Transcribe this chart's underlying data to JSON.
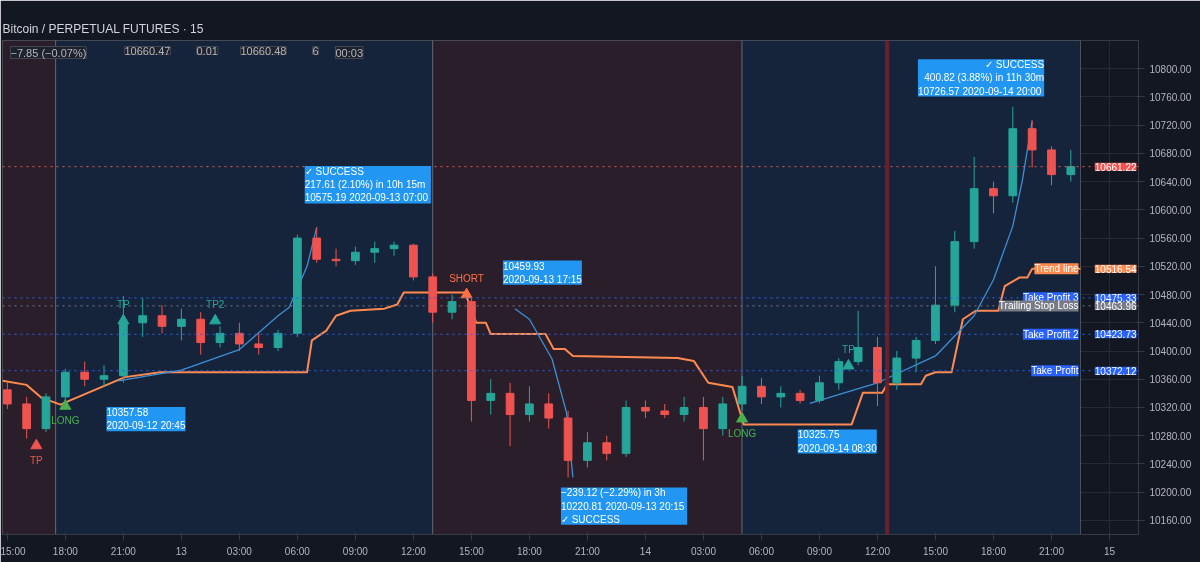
{
  "chart_data": {
    "type": "candlestick",
    "title": "Bitcoin / PERPETUAL FUTURES · 15",
    "x": [
      "2020-09-12T15:00",
      "2020-09-12T16:00",
      "2020-09-12T17:00",
      "2020-09-12T18:00",
      "2020-09-12T19:00",
      "2020-09-12T20:00",
      "2020-09-12T21:00",
      "2020-09-12T22:00",
      "2020-09-12T23:00",
      "2020-09-13T00:00",
      "2020-09-13T01:00",
      "2020-09-13T02:00",
      "2020-09-13T03:00",
      "2020-09-13T04:00",
      "2020-09-13T05:00",
      "2020-09-13T06:00",
      "2020-09-13T07:00",
      "2020-09-13T08:00",
      "2020-09-13T09:00",
      "2020-09-13T10:00",
      "2020-09-13T11:00",
      "2020-09-13T12:00",
      "2020-09-13T13:00",
      "2020-09-13T14:00",
      "2020-09-13T15:00",
      "2020-09-13T16:00",
      "2020-09-13T17:00",
      "2020-09-13T18:00",
      "2020-09-13T19:00",
      "2020-09-13T20:00",
      "2020-09-13T21:00",
      "2020-09-13T22:00",
      "2020-09-13T23:00",
      "2020-09-14T00:00",
      "2020-09-14T01:00",
      "2020-09-14T02:00",
      "2020-09-14T03:00",
      "2020-09-14T04:00",
      "2020-09-14T05:00",
      "2020-09-14T06:00",
      "2020-09-14T07:00",
      "2020-09-14T08:00",
      "2020-09-14T09:00",
      "2020-09-14T10:00",
      "2020-09-14T11:00",
      "2020-09-14T12:00",
      "2020-09-14T13:00",
      "2020-09-14T14:00",
      "2020-09-14T15:00",
      "2020-09-14T16:00",
      "2020-09-14T17:00",
      "2020-09-14T18:00",
      "2020-09-14T19:00",
      "2020-09-14T20:00",
      "2020-09-14T21:00",
      "2020-09-14T22:00"
    ],
    "ohlc": [
      [
        10345,
        10355,
        10318,
        10325
      ],
      [
        10325,
        10335,
        10276,
        10290
      ],
      [
        10290,
        10340,
        10285,
        10335
      ],
      [
        10335,
        10375,
        10325,
        10370
      ],
      [
        10370,
        10385,
        10350,
        10360
      ],
      [
        10360,
        10380,
        10350,
        10365
      ],
      [
        10365,
        10478,
        10355,
        10440
      ],
      [
        10440,
        10475,
        10420,
        10450
      ],
      [
        10450,
        10465,
        10425,
        10435
      ],
      [
        10435,
        10460,
        10415,
        10445
      ],
      [
        10445,
        10455,
        10395,
        10412
      ],
      [
        10412,
        10435,
        10405,
        10425
      ],
      [
        10425,
        10440,
        10400,
        10410
      ],
      [
        10410,
        10425,
        10395,
        10405
      ],
      [
        10405,
        10430,
        10400,
        10425
      ],
      [
        10425,
        10565,
        10420,
        10560
      ],
      [
        10560,
        10575.19,
        10525,
        10530
      ],
      [
        10530,
        10545,
        10520,
        10528
      ],
      [
        10528,
        10548,
        10522,
        10540
      ],
      [
        10540,
        10555,
        10525,
        10545
      ],
      [
        10545,
        10555,
        10535,
        10550
      ],
      [
        10550,
        10552,
        10500,
        10505
      ],
      [
        10505,
        10510,
        10440,
        10455
      ],
      [
        10455,
        10480,
        10445,
        10470
      ],
      [
        10470,
        10475,
        10300,
        10330
      ],
      [
        10330,
        10360,
        10310,
        10340
      ],
      [
        10340,
        10355,
        10265,
        10310
      ],
      [
        10310,
        10350,
        10300,
        10325
      ],
      [
        10325,
        10340,
        10290,
        10305
      ],
      [
        10305,
        10315,
        10220.81,
        10245
      ],
      [
        10245,
        10285,
        10235,
        10270
      ],
      [
        10270,
        10280,
        10245,
        10255
      ],
      [
        10255,
        10330,
        10250,
        10320
      ],
      [
        10320,
        10330,
        10305,
        10315
      ],
      [
        10315,
        10325,
        10305,
        10310
      ],
      [
        10310,
        10335,
        10300,
        10320
      ],
      [
        10320,
        10335,
        10245,
        10290
      ],
      [
        10290,
        10335,
        10280,
        10325
      ],
      [
        10325,
        10365,
        10315,
        10350
      ],
      [
        10350,
        10362,
        10325,
        10335
      ],
      [
        10335,
        10350,
        10320,
        10340
      ],
      [
        10340,
        10345,
        10325.75,
        10330
      ],
      [
        10330,
        10365,
        10326,
        10355
      ],
      [
        10355,
        10390,
        10345,
        10385
      ],
      [
        10385,
        10457,
        10380,
        10405
      ],
      [
        10405,
        10420,
        10322,
        10355
      ],
      [
        10355,
        10400,
        10345,
        10390
      ],
      [
        10390,
        10420,
        10370,
        10415
      ],
      [
        10415,
        10520,
        10410,
        10465
      ],
      [
        10465,
        10570,
        10455,
        10555
      ],
      [
        10555,
        10675,
        10545,
        10630
      ],
      [
        10630,
        10640,
        10595,
        10620
      ],
      [
        10620,
        10746,
        10610,
        10715
      ],
      [
        10715,
        10726.57,
        10660,
        10685
      ],
      [
        10685,
        10690,
        10635,
        10650
      ],
      [
        10650,
        10685,
        10640,
        10661.22
      ]
    ],
    "colors": [
      "#ef5350",
      "#ef5350",
      "#26a69a",
      "#26a69a",
      "#ef5350",
      "#26a69a",
      "#26a69a",
      "#26a69a",
      "#ef5350",
      "#26a69a",
      "#ef5350",
      "#26a69a",
      "#ef5350",
      "#ef5350",
      "#26a69a",
      "#26a69a",
      "#ef5350",
      "#ef5350",
      "#26a69a",
      "#26a69a",
      "#26a69a",
      "#ef5350",
      "#ef5350",
      "#26a69a",
      "#ef5350",
      "#26a69a",
      "#ef5350",
      "#26a69a",
      "#ef5350",
      "#ef5350",
      "#26a69a",
      "#ef5350",
      "#26a69a",
      "#ef5350",
      "#ef5350",
      "#26a69a",
      "#ef5350",
      "#26a69a",
      "#26a69a",
      "#ef5350",
      "#26a69a",
      "#ef5350",
      "#26a69a",
      "#26a69a",
      "#26a69a",
      "#ef5350",
      "#26a69a",
      "#26a69a",
      "#26a69a",
      "#26a69a",
      "#26a69a",
      "#ef5350",
      "#26a69a",
      "#ef5350",
      "#ef5350",
      "#26a69a"
    ],
    "series": [
      {
        "type": "line",
        "name": "Trend line",
        "color": "#ff8a50",
        "x": [
          "2020-09-12T14:45",
          "2020-09-12T16:00",
          "2020-09-12T16:45",
          "2020-09-12T17:45",
          "2020-09-12T18:15",
          "2020-09-12T21:05",
          "2020-09-12T22:55",
          "2020-09-13T06:30",
          "2020-09-13T06:45",
          "2020-09-13T07:30",
          "2020-09-13T08:00",
          "2020-09-13T08:45",
          "2020-09-13T10:30",
          "2020-09-13T11:10",
          "2020-09-13T11:30",
          "2020-09-13T14:40",
          "2020-09-13T15:15",
          "2020-09-13T15:45",
          "2020-09-13T16:00",
          "2020-09-13T18:50",
          "2020-09-13T19:15",
          "2020-09-13T19:50",
          "2020-09-13T20:15",
          "2020-09-14T01:40",
          "2020-09-14T02:30",
          "2020-09-14T03:15",
          "2020-09-14T04:30",
          "2020-09-14T05:05",
          "2020-09-14T10:40",
          "2020-09-14T11:15",
          "2020-09-14T12:15",
          "2020-09-14T12:30",
          "2020-09-14T14:15",
          "2020-09-14T14:30",
          "2020-09-14T15:00",
          "2020-09-14T15:50",
          "2020-09-14T16:25",
          "2020-09-14T17:05",
          "2020-09-14T18:15",
          "2020-09-14T18:35",
          "2020-09-14T19:20",
          "2020-09-14T19:45",
          "2020-09-14T20:00",
          "2020-09-14T22:30"
        ],
        "values": [
          10358,
          10352,
          10334,
          10324,
          10330,
          10363,
          10370,
          10370,
          10415,
          10429,
          10450,
          10457,
          10460,
          10466,
          10483,
          10483,
          10440,
          10440,
          10424,
          10424,
          10403,
          10403,
          10393,
          10390,
          10386,
          10355,
          10349,
          10296,
          10296,
          10341,
          10341,
          10353,
          10353,
          10365,
          10370,
          10370,
          10445,
          10457,
          10457,
          10492,
          10504,
          10504,
          10516.54,
          10516.54
        ]
      },
      {
        "type": "line",
        "color": "#3d8fd6",
        "x": [
          "2020-09-12T20:45",
          "2020-09-13T00:00",
          "2020-09-13T03:00",
          "2020-09-13T05:00",
          "2020-09-13T05:35",
          "2020-09-13T06:30",
          "2020-09-13T07:00"
        ],
        "values": [
          10357.58,
          10373,
          10402,
          10450,
          10462,
          10520,
          10575.19
        ]
      },
      {
        "type": "line",
        "color": "#3d8fd6",
        "x": [
          "2020-09-13T17:15",
          "2020-09-13T18:00",
          "2020-09-13T19:10",
          "2020-09-13T19:55",
          "2020-09-13T20:15"
        ],
        "values": [
          10459.93,
          10445,
          10389,
          10313,
          10220.81
        ]
      },
      {
        "type": "line",
        "color": "#3d8fd6",
        "x": [
          "2020-09-14T08:30",
          "2020-09-14T12:00",
          "2020-09-14T15:00",
          "2020-09-14T17:00",
          "2020-09-14T18:00",
          "2020-09-14T19:00",
          "2020-09-14T19:30",
          "2020-09-14T20:00"
        ],
        "values": [
          10325.75,
          10355,
          10393,
          10450,
          10501,
          10577,
          10643,
          10726.57
        ]
      },
      {
        "type": "scatter",
        "marker": "triangle",
        "x": [
          "2020-09-12T16:30",
          "2020-09-12T18:00",
          "2020-09-12T21:00",
          "2020-09-13T01:45",
          "2020-09-13T14:45",
          "2020-09-14T05:00",
          "2020-09-14T10:30"
        ],
        "values": [
          10266,
          10322,
          10443,
          10443,
          10480,
          10304,
          10379
        ],
        "colors": [
          "#ef5350",
          "#4caf50",
          "#26a69a",
          "#26a69a",
          "#ff7043",
          "#4caf50",
          "#26a69a"
        ],
        "value_labels": [
          "TP",
          "LONG",
          "TP",
          "TP2",
          "SHORT",
          "LONG",
          "TP"
        ]
      }
    ],
    "xlim": [
      "2020-09-12T14:45",
      "2020-09-15T01:30"
    ],
    "xticks": [
      {
        "value": "2020-09-12T15:00",
        "label": "15:00"
      },
      {
        "value": "2020-09-12T18:00",
        "label": "18:00"
      },
      {
        "value": "2020-09-12T21:00",
        "label": "21:00"
      },
      {
        "value": "2020-09-13T00:00",
        "label": "13"
      },
      {
        "value": "2020-09-13T03:00",
        "label": "03:00"
      },
      {
        "value": "2020-09-13T06:00",
        "label": "06:00"
      },
      {
        "value": "2020-09-13T09:00",
        "label": "09:00"
      },
      {
        "value": "2020-09-13T12:00",
        "label": "12:00"
      },
      {
        "value": "2020-09-13T15:00",
        "label": "15:00"
      },
      {
        "value": "2020-09-13T18:00",
        "label": "18:00"
      },
      {
        "value": "2020-09-13T21:00",
        "label": "21:00"
      },
      {
        "value": "2020-09-14T00:00",
        "label": "14"
      },
      {
        "value": "2020-09-14T03:00",
        "label": "03:00"
      },
      {
        "value": "2020-09-14T06:00",
        "label": "06:00"
      },
      {
        "value": "2020-09-14T09:00",
        "label": "09:00"
      },
      {
        "value": "2020-09-14T12:00",
        "label": "12:00"
      },
      {
        "value": "2020-09-14T15:00",
        "label": "15:00"
      },
      {
        "value": "2020-09-14T18:00",
        "label": "18:00"
      },
      {
        "value": "2020-09-14T21:00",
        "label": "21:00"
      },
      {
        "value": "2020-09-15T00:00",
        "label": "15"
      }
    ],
    "ylim": [
      10140,
      10840
    ],
    "yticks": [
      {
        "value": 10160,
        "label": "10160.00"
      },
      {
        "value": 10200,
        "label": "10200.00"
      },
      {
        "value": 10240,
        "label": "10240.00"
      },
      {
        "value": 10280,
        "label": "10280.00"
      },
      {
        "value": 10320,
        "label": "10320.00"
      },
      {
        "value": 10360,
        "label": "10360.00"
      },
      {
        "value": 10400,
        "label": "10400.00"
      },
      {
        "value": 10440,
        "label": "10440.00"
      },
      {
        "value": 10480,
        "label": "10480.00"
      },
      {
        "value": 10520,
        "label": "10520.00"
      },
      {
        "value": 10560,
        "label": "10560.00"
      },
      {
        "value": 10600,
        "label": "10600.00"
      },
      {
        "value": 10640,
        "label": "10640.00"
      },
      {
        "value": 10680,
        "label": "10680.00"
      },
      {
        "value": 10720,
        "label": "10720.00"
      },
      {
        "value": 10760,
        "label": "10760.00"
      },
      {
        "value": 10800,
        "label": "10800.00"
      }
    ],
    "grid": true,
    "bands": [
      {
        "axis": "x",
        "from": "2020-09-12T14:45",
        "to": "2020-09-12T17:30",
        "color": "#2a1e2a"
      },
      {
        "axis": "x",
        "from": "2020-09-12T17:30",
        "to": "2020-09-13T13:00",
        "color": "#15243a"
      },
      {
        "axis": "x",
        "from": "2020-09-13T13:00",
        "to": "2020-09-14T05:00",
        "color": "#2a1e2a"
      },
      {
        "axis": "x",
        "from": "2020-09-14T05:00",
        "to": "2020-09-14T22:30",
        "color": "#15243a"
      }
    ],
    "ref_lines": [
      {
        "axis": "y",
        "value": 10661.22,
        "label": "10661.22",
        "color": "#ef5350",
        "line_style": "dotted"
      },
      {
        "axis": "x",
        "value": "2020-09-14T12:30",
        "color": "#6b1f2a",
        "line_style": "solid"
      },
      {
        "axis": "y",
        "value": 10475.33,
        "label": "Take Profit 3",
        "color": "#2962ff",
        "line_style": "dotted"
      },
      {
        "axis": "y",
        "value": 10463.96,
        "label": "Trailing Stop Loss",
        "color": "#787b86",
        "line_style": "dotted"
      },
      {
        "axis": "y",
        "value": 10423.73,
        "label": "Take Profit 2",
        "color": "#2962ff",
        "line_style": "dotted"
      },
      {
        "axis": "y",
        "value": 10372.12,
        "label": "Take Profit",
        "color": "#2962ff",
        "line_style": "dotted"
      }
    ],
    "annotations": [
      "−7.85 (−0.07%)",
      "10660.47",
      "0.01",
      "10660.48",
      "6",
      "00:03",
      {
        "text": "10357.58\n2020-09-12 20:45",
        "x": "2020-09-12T20:45",
        "y": 10357.58
      },
      {
        "text": "✓ SUCCESS\n217.61 (2.10%) in 10h 15m\n10575.19 2020-09-13  07:00",
        "x": "2020-09-13T07:00",
        "y": 10575.19
      },
      {
        "text": "10459.93\n2020-09-13 17:15",
        "x": "2020-09-13T17:15",
        "y": 10459.93
      },
      {
        "text": "−239.12 (−2.29%) in 3h\n10220.81 2020-09-13  20:15\n✓ SUCCESS",
        "x": "2020-09-13T20:15",
        "y": 10220.81
      },
      {
        "text": "10325.75\n2020-09-14 08:30",
        "x": "2020-09-14T08:30",
        "y": 10325.75
      },
      {
        "text": "✓ SUCCESS\n400.82 (3.88%) in 11h 30m\n10726.57 2020-09-14  20:00",
        "x": "2020-09-14T20:00",
        "y": 10726.57
      },
      {
        "text": "10516.54",
        "x": "2020-09-14T22:30",
        "y": 10516.54
      },
      {
        "text": "10475.33",
        "y": 10475.33
      },
      {
        "text": "10463.96",
        "y": 10463.96
      },
      {
        "text": "10423.73",
        "y": 10423.73
      },
      {
        "text": "10372.12",
        "y": 10372.12
      }
    ]
  }
}
